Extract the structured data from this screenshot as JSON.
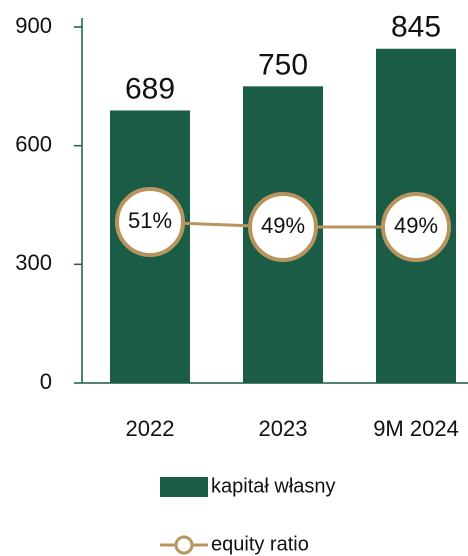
{
  "chart_data": {
    "type": "bar",
    "categories": [
      "2022",
      "2023",
      "9M 2024"
    ],
    "series": [
      {
        "name": "kapitał własny",
        "type": "bar",
        "color": "#1a5c45",
        "values": [
          689,
          750,
          845
        ]
      },
      {
        "name": "equity ratio",
        "type": "line",
        "axis": "y2",
        "color": "#b8955e",
        "values": [
          51,
          49,
          49
        ],
        "value_labels": [
          "51%",
          "49%",
          "49%"
        ]
      }
    ],
    "ylim": [
      0,
      900
    ],
    "yticks": [
      0,
      300,
      600,
      900
    ],
    "y2lim": [
      -13.4,
      129
    ]
  }
}
